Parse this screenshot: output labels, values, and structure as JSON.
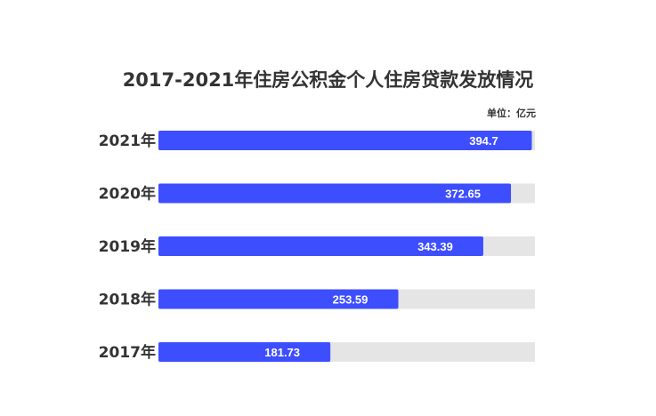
{
  "chart_data": {
    "type": "bar",
    "orientation": "horizontal",
    "title": "2017-2021年住房公积金个人住房贷款发放情况",
    "unit": "单位：亿元",
    "categories": [
      "2021年",
      "2020年",
      "2019年",
      "2018年",
      "2017年"
    ],
    "values": [
      394.7,
      372.65,
      343.39,
      253.59,
      181.73
    ],
    "value_labels": [
      "394.7",
      "372.65",
      "343.39",
      "253.59",
      "181.73"
    ],
    "xlim": [
      0,
      398
    ],
    "grid": false,
    "legend": "none",
    "colors": {
      "bar": "#3d4eff",
      "track": "#e5e5e5",
      "value_text": "#ffffff",
      "category_text": "#333333"
    }
  }
}
